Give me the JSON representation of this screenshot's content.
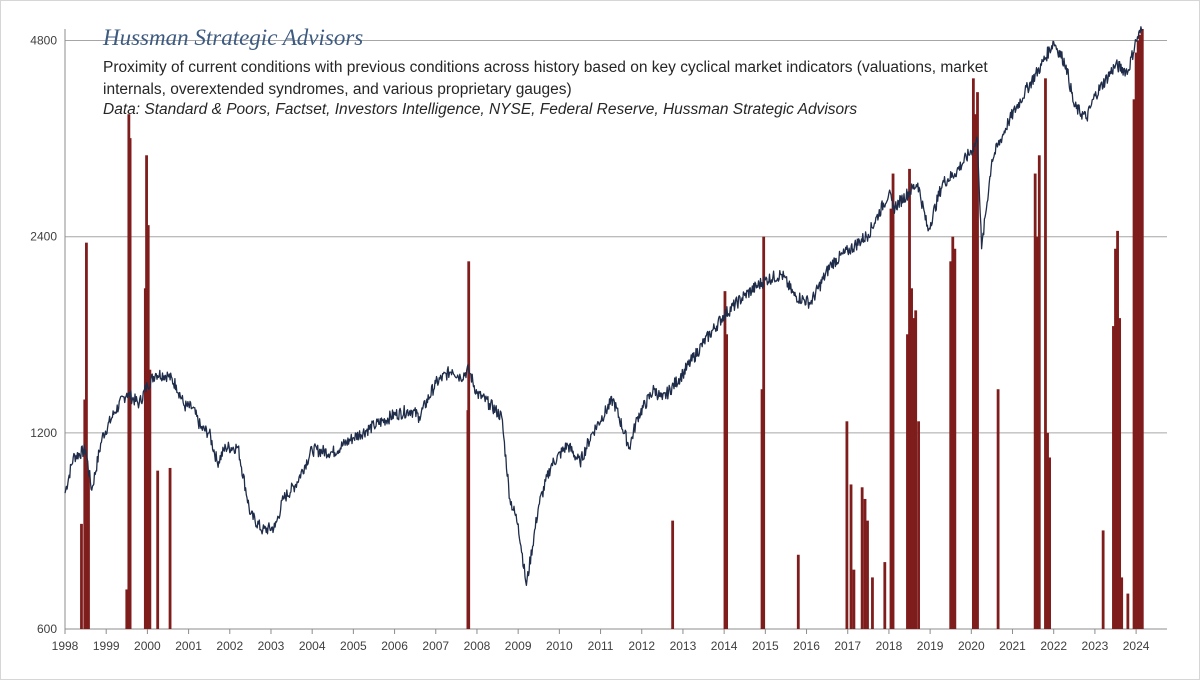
{
  "header": {
    "brand": "Hussman Strategic Advisors",
    "subtitle": "Proximity of current conditions with previous conditions across history based on key cyclical market indicators (valuations, market internals, overextended syndromes, and various proprietary gauges)",
    "source": "Data: Standard & Poors, Factset,  Investors Intelligence,  NYSE, Federal Reserve, Hussman Strategic Advisors"
  },
  "chart_data": {
    "type": "line",
    "title": "Hussman Strategic Advisors",
    "subtitle": "Proximity of current conditions with previous conditions across history based on key cyclical market indicators (valuations, market internals, overextended syndromes, and various proprietary gauges)",
    "source": "Data: Standard & Poors, Factset,  Investors Intelligence,  NYSE, Federal Reserve, Hussman Strategic Advisors",
    "y_scale": "log",
    "ylim": [
      600,
      5000
    ],
    "y_ticks": [
      600,
      1200,
      2400,
      4800
    ],
    "y_tick_labels": [
      "600",
      "1200",
      "2400",
      "4800"
    ],
    "xlim": [
      1998.0,
      2024.75
    ],
    "x_ticks": [
      1998,
      1999,
      2000,
      2001,
      2002,
      2003,
      2004,
      2005,
      2006,
      2007,
      2008,
      2009,
      2010,
      2011,
      2012,
      2013,
      2014,
      2015,
      2016,
      2017,
      2018,
      2019,
      2020,
      2021,
      2022,
      2023,
      2024
    ],
    "x_tick_labels": [
      "1998",
      "1999",
      "2000",
      "2001",
      "2002",
      "2003",
      "2004",
      "2005",
      "2006",
      "2007",
      "2008",
      "2009",
      "2010",
      "2011",
      "2012",
      "2013",
      "2014",
      "2015",
      "2016",
      "2017",
      "2018",
      "2019",
      "2020",
      "2021",
      "2022",
      "2023",
      "2024"
    ],
    "grid": {
      "horizontal": true,
      "vertical": false
    },
    "legend": "none",
    "series": [
      {
        "type": "line",
        "color": "#1f2d4a",
        "x": [
          1998.0,
          1998.2,
          1998.5,
          1998.65,
          1998.9,
          1999.2,
          1999.5,
          1999.8,
          2000.0,
          2000.2,
          2000.5,
          2000.7,
          2000.9,
          2001.1,
          2001.3,
          2001.5,
          2001.7,
          2001.9,
          2002.2,
          2002.5,
          2002.8,
          2003.1,
          2003.3,
          2003.6,
          2004.0,
          2004.5,
          2005.0,
          2005.5,
          2006.0,
          2006.4,
          2006.6,
          2007.0,
          2007.4,
          2007.6,
          2007.8,
          2008.0,
          2008.3,
          2008.6,
          2008.8,
          2009.0,
          2009.2,
          2009.5,
          2009.8,
          2010.2,
          2010.5,
          2010.8,
          2011.3,
          2011.7,
          2011.9,
          2012.3,
          2012.5,
          2013.0,
          2013.5,
          2014.0,
          2014.5,
          2015.0,
          2015.4,
          2015.7,
          2016.1,
          2016.6,
          2017.0,
          2017.5,
          2018.0,
          2018.1,
          2018.7,
          2018.95,
          2019.3,
          2019.6,
          2020.0,
          2020.15,
          2020.25,
          2020.5,
          2020.9,
          2021.3,
          2021.7,
          2022.0,
          2022.3,
          2022.5,
          2022.8,
          2023.0,
          2023.5,
          2023.8,
          2024.0,
          2024.15
        ],
        "y": [
          970,
          1100,
          1130,
          980,
          1180,
          1290,
          1380,
          1330,
          1420,
          1480,
          1470,
          1420,
          1320,
          1310,
          1220,
          1200,
          1080,
          1140,
          1140,
          900,
          850,
          860,
          950,
          1000,
          1130,
          1120,
          1180,
          1230,
          1280,
          1300,
          1270,
          1430,
          1500,
          1460,
          1500,
          1380,
          1330,
          1270,
          950,
          870,
          700,
          930,
          1070,
          1150,
          1080,
          1200,
          1350,
          1140,
          1270,
          1400,
          1350,
          1480,
          1650,
          1820,
          1950,
          2060,
          2100,
          1950,
          1900,
          2180,
          2280,
          2420,
          2800,
          2650,
          2900,
          2450,
          2900,
          3000,
          3250,
          3380,
          2300,
          3150,
          3600,
          4000,
          4400,
          4780,
          4400,
          3800,
          3650,
          3950,
          4400,
          4300,
          4800,
          5000
        ]
      },
      {
        "type": "bar",
        "name": "",
        "color": "#7f1d1d",
        "x": [
          1998.4,
          1998.48,
          1998.52,
          1998.57,
          1999.5,
          1999.55,
          1999.58,
          1999.95,
          1999.98,
          2000.02,
          2000.06,
          2000.25,
          2000.55,
          2007.78,
          2007.8,
          2012.75,
          2014.02,
          2014.06,
          2014.92,
          2014.96,
          2015.8,
          2016.98,
          2017.08,
          2017.15,
          2017.35,
          2017.42,
          2017.48,
          2017.6,
          2017.9,
          2018.05,
          2018.1,
          2018.45,
          2018.5,
          2018.55,
          2018.6,
          2018.65,
          2018.72,
          2019.5,
          2019.55,
          2019.6,
          2020.05,
          2020.1,
          2020.15,
          2020.65,
          2021.55,
          2021.6,
          2021.65,
          2021.8,
          2021.85,
          2021.9,
          2023.2,
          2023.45,
          2023.5,
          2023.55,
          2023.6,
          2023.65,
          2023.8,
          2023.95,
          2024.0,
          2024.05,
          2024.1,
          2024.15
        ],
        "y": [
          870,
          1350,
          2350,
          1050,
          690,
          3700,
          3400,
          2000,
          3200,
          2500,
          1500,
          1050,
          1060,
          1300,
          2200,
          880,
          1980,
          1700,
          1400,
          2400,
          780,
          1250,
          1000,
          740,
          990,
          950,
          880,
          720,
          760,
          2650,
          3000,
          1700,
          3050,
          2000,
          1800,
          1850,
          1250,
          2200,
          2400,
          2300,
          4200,
          3700,
          4000,
          1400,
          3000,
          2400,
          3200,
          4200,
          1200,
          1100,
          850,
          1750,
          2300,
          2450,
          1800,
          720,
          680,
          3900,
          4600,
          4800,
          4900,
          5000
        ]
      }
    ]
  }
}
